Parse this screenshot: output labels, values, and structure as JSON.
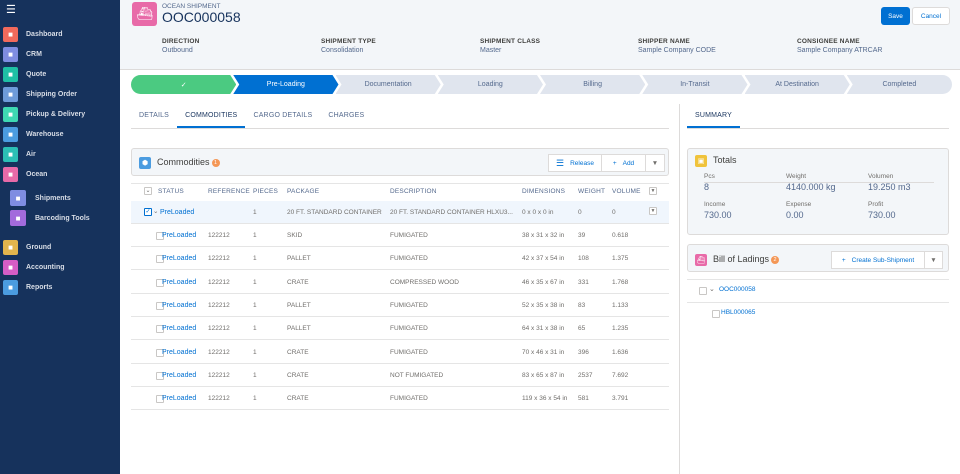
{
  "sidebar": {
    "items": [
      {
        "label": "Dashboard",
        "icon": "dashboard-icon",
        "color": "#f26a5c"
      },
      {
        "label": "CRM",
        "icon": "crm-icon",
        "color": "#7f8de1"
      },
      {
        "label": "Quote",
        "icon": "quote-icon",
        "color": "#1fc0a5"
      },
      {
        "label": "Shipping Order",
        "icon": "shipping-order-icon",
        "color": "#6e9bd9"
      },
      {
        "label": "Pickup & Delivery",
        "icon": "truck-icon",
        "color": "#3fd9b3"
      },
      {
        "label": "Warehouse",
        "icon": "warehouse-icon",
        "color": "#4b9ce0"
      },
      {
        "label": "Air",
        "icon": "plane-icon",
        "color": "#2cbfb5"
      },
      {
        "label": "Ocean",
        "icon": "ship-icon",
        "color": "#e86aa8"
      },
      {
        "label": "Shipments",
        "icon": "folder-icon",
        "color": "#7f8de1"
      },
      {
        "label": "Barcoding Tools",
        "icon": "barcode-icon",
        "color": "#a36bdc"
      },
      {
        "label": "Ground",
        "icon": "ground-truck-icon",
        "color": "#e2b54d"
      },
      {
        "label": "Accounting",
        "icon": "accounting-icon",
        "color": "#d55dc5"
      },
      {
        "label": "Reports",
        "icon": "reports-icon",
        "color": "#4b9ce0"
      }
    ]
  },
  "header": {
    "object_type": "OCEAN SHIPMENT",
    "title": "OOC000058",
    "save": "Save",
    "cancel": "Cancel",
    "fields": [
      {
        "label": "DIRECTION",
        "value": "Outbound"
      },
      {
        "label": "SHIPMENT TYPE",
        "value": "Consolidation"
      },
      {
        "label": "SHIPMENT CLASS",
        "value": "Master"
      },
      {
        "label": "SHIPPER NAME",
        "value": "Sample Company CODE"
      },
      {
        "label": "CONSIGNEE NAME",
        "value": "Sample Company ATRCAR"
      }
    ]
  },
  "path": {
    "steps": [
      "✓",
      "Pre-Loading",
      "Documentation",
      "Loading",
      "Billing",
      "In-Transit",
      "At Destination",
      "Completed"
    ],
    "current": 1
  },
  "tabs": [
    "DETAILS",
    "COMMODITIES",
    "CARGO DETAILS",
    "CHARGES"
  ],
  "summary_tab": "SUMMARY",
  "commodities": {
    "title": "Commodities",
    "count": "1",
    "release": "Release",
    "add": "Add",
    "columns": [
      "STATUS",
      "REFERENCE",
      "PIECES",
      "PACKAGE",
      "DESCRIPTION",
      "DIMENSIONS",
      "WEIGHT",
      "VOLUME"
    ],
    "parent": {
      "status": "PreLoaded",
      "reference": "",
      "pieces": "1",
      "package": "20 FT. STANDARD CONTAINER",
      "description": "20 FT. STANDARD CONTAINER HLXU3...",
      "dimensions": "0 x 0 x 0 in",
      "weight": "0",
      "volume": "0"
    },
    "rows": [
      [
        "PreLoaded",
        "122212",
        "1",
        "SKID",
        "FUMIGATED",
        "38 x 31 x 32 in",
        "39",
        "0.618"
      ],
      [
        "PreLoaded",
        "122212",
        "1",
        "PALLET",
        "FUMIGATED",
        "42 x 37 x 54 in",
        "108",
        "1.375"
      ],
      [
        "PreLoaded",
        "122212",
        "1",
        "CRATE",
        "COMPRESSED WOOD",
        "46 x 35 x 67 in",
        "331",
        "1.768"
      ],
      [
        "PreLoaded",
        "122212",
        "1",
        "PALLET",
        "FUMIGATED",
        "52 x 35 x 38 in",
        "83",
        "1.133"
      ],
      [
        "PreLoaded",
        "122212",
        "1",
        "PALLET",
        "FUMIGATED",
        "64 x 31 x 38 in",
        "65",
        "1.235"
      ],
      [
        "PreLoaded",
        "122212",
        "1",
        "CRATE",
        "FUMIGATED",
        "70 x 46 x 31 in",
        "396",
        "1.636"
      ],
      [
        "PreLoaded",
        "122212",
        "1",
        "CRATE",
        "NOT FUMIGATED",
        "83 x 65 x 87 in",
        "2537",
        "7.692"
      ],
      [
        "PreLoaded",
        "122212",
        "1",
        "CRATE",
        "FUMIGATED",
        "119 x 36 x 54 in",
        "581",
        "3.791"
      ]
    ]
  },
  "totals": {
    "title": "Totals",
    "items": [
      {
        "label": "Pcs",
        "value": "8"
      },
      {
        "label": "Weight",
        "value": "4140.000 kg"
      },
      {
        "label": "Volumen",
        "value": "19.250 m3"
      },
      {
        "label": "Income",
        "value": "730.00"
      },
      {
        "label": "Expense",
        "value": "0.00"
      },
      {
        "label": "Profit",
        "value": "730.00"
      }
    ]
  },
  "bol": {
    "title": "Bill of Ladings",
    "count": "2",
    "create": "Create Sub-Shipment",
    "items": [
      "OOC000058",
      "HBL000065"
    ]
  }
}
